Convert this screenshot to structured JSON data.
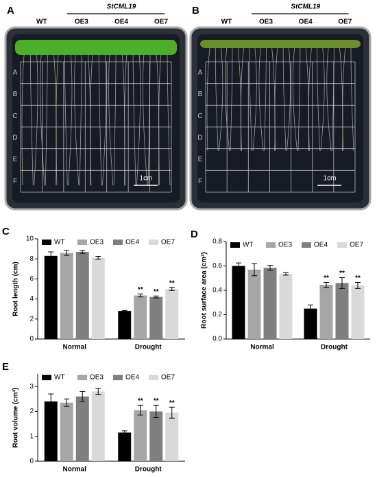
{
  "photos": [
    {
      "panel": "A",
      "labels": [
        "WT",
        "OE3",
        "OE4",
        "OE7"
      ],
      "group": "StCML19",
      "scale": "1cm",
      "rows": [
        "A",
        "B",
        "C",
        "D",
        "E",
        "F"
      ]
    },
    {
      "panel": "B",
      "labels": [
        "WT",
        "OE3",
        "OE4",
        "OE7"
      ],
      "group": "StCML19",
      "scale": "1cm",
      "rows": [
        "A",
        "B",
        "C",
        "D",
        "E",
        "F"
      ]
    }
  ],
  "chart_data": [
    {
      "type": "bar",
      "panel": "C",
      "ylabel": "Root length (cm)",
      "categories": [
        "Normal",
        "Drought"
      ],
      "ylim": [
        0,
        10
      ],
      "yticks": [
        0,
        2,
        4,
        6,
        8,
        10
      ],
      "series": [
        {
          "name": "WT",
          "color": "#000000",
          "values": [
            8.3,
            2.8
          ],
          "errors": [
            0.4,
            0.05
          ],
          "annotations": [
            null,
            null
          ]
        },
        {
          "name": "OE3",
          "color": "#a6a6a6",
          "values": [
            8.6,
            4.35
          ],
          "errors": [
            0.25,
            0.15
          ],
          "annotations": [
            null,
            "**"
          ]
        },
        {
          "name": "OE4",
          "color": "#7f7f7f",
          "values": [
            8.7,
            4.2
          ],
          "errors": [
            0.15,
            0.1
          ],
          "annotations": [
            null,
            "**"
          ]
        },
        {
          "name": "OE7",
          "color": "#d9d9d9",
          "values": [
            8.1,
            5.0
          ],
          "errors": [
            0.15,
            0.15
          ],
          "annotations": [
            null,
            "**"
          ]
        }
      ]
    },
    {
      "type": "bar",
      "panel": "D",
      "ylabel": "Root surface area (cm²)",
      "categories": [
        "Normal",
        "Drought"
      ],
      "ylim": [
        0,
        0.8
      ],
      "yticks": [
        {
          "value": 0,
          "label": "0.0"
        },
        0.2,
        0.4,
        0.6,
        0.8
      ],
      "series": [
        {
          "name": "WT",
          "color": "#000000",
          "values": [
            0.6,
            0.25
          ],
          "errors": [
            0.025,
            0.03
          ],
          "annotations": [
            null,
            null
          ]
        },
        {
          "name": "OE3",
          "color": "#a6a6a6",
          "values": [
            0.57,
            0.445
          ],
          "errors": [
            0.05,
            0.02
          ],
          "annotations": [
            null,
            "**"
          ]
        },
        {
          "name": "OE4",
          "color": "#7f7f7f",
          "values": [
            0.585,
            0.46
          ],
          "errors": [
            0.02,
            0.045
          ],
          "annotations": [
            null,
            "**"
          ]
        },
        {
          "name": "OE7",
          "color": "#d9d9d9",
          "values": [
            0.535,
            0.44
          ],
          "errors": [
            0.01,
            0.025
          ],
          "annotations": [
            null,
            "**"
          ]
        }
      ]
    },
    {
      "type": "bar",
      "panel": "E",
      "ylabel": "Root volume (cm³)",
      "categories": [
        "Normal",
        "Drought"
      ],
      "ylim": [
        0,
        3.5
      ],
      "yticks": [
        0,
        1,
        2,
        3
      ],
      "series": [
        {
          "name": "WT",
          "color": "#000000",
          "values": [
            2.4,
            1.15
          ],
          "errors": [
            0.3,
            0.07
          ],
          "annotations": [
            null,
            null
          ]
        },
        {
          "name": "OE3",
          "color": "#a6a6a6",
          "values": [
            2.35,
            2.05
          ],
          "errors": [
            0.15,
            0.2
          ],
          "annotations": [
            null,
            "**"
          ]
        },
        {
          "name": "OE4",
          "color": "#7f7f7f",
          "values": [
            2.6,
            2.0
          ],
          "errors": [
            0.2,
            0.25
          ],
          "annotations": [
            null,
            "**"
          ]
        },
        {
          "name": "OE7",
          "color": "#d9d9d9",
          "values": [
            2.8,
            1.95
          ],
          "errors": [
            0.12,
            0.22
          ],
          "annotations": [
            null,
            "**"
          ]
        }
      ]
    }
  ]
}
